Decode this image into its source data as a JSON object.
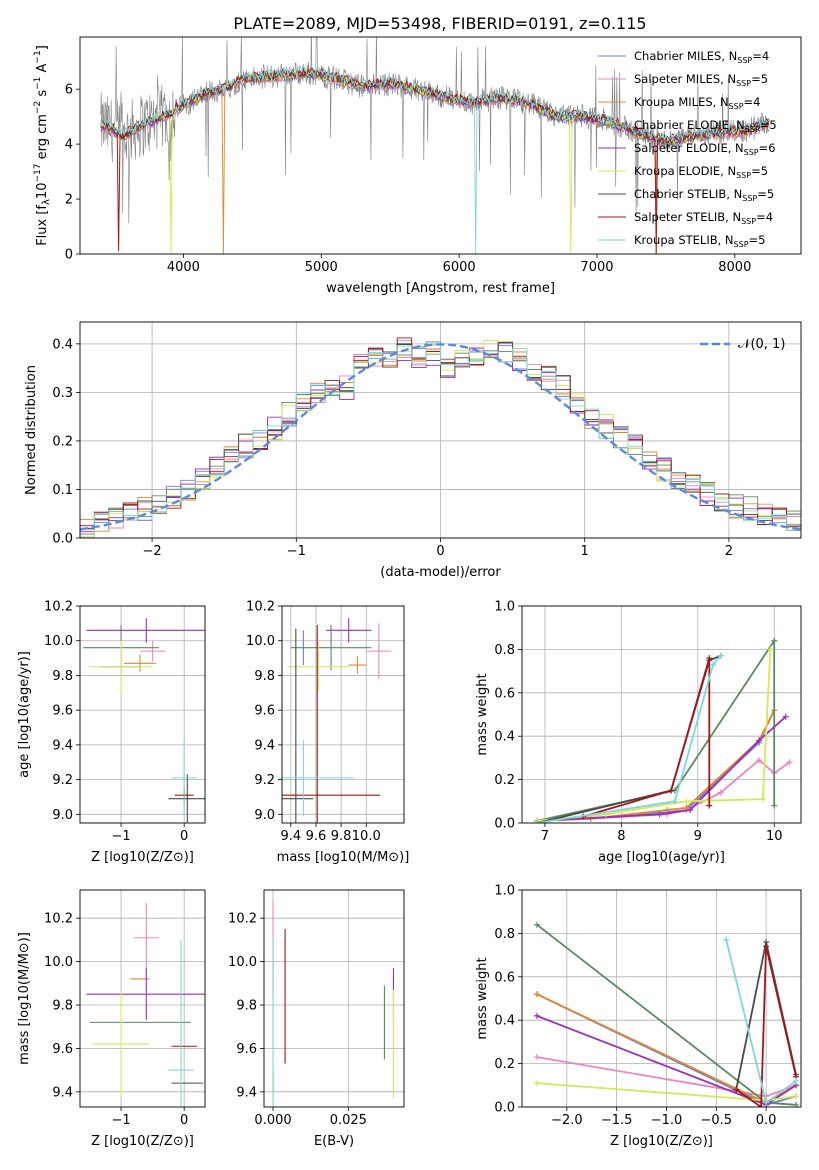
{
  "figure": {
    "title": "PLATE=2089, MJD=53498, FIBERID=0191, z=0.115"
  },
  "legend_series": [
    {
      "name": "Chabrier MILES, N",
      "sub": "SSP",
      "tail": "=4",
      "color": "#6f7fdb"
    },
    {
      "name": "Salpeter MILES, N",
      "sub": "SSP",
      "tail": "=5",
      "color": "#e887c0"
    },
    {
      "name": "Kroupa MILES, N",
      "sub": "SSP",
      "tail": "=4",
      "color": "#e08a2a"
    },
    {
      "name": "Chabrier ELODIE, N",
      "sub": "SSP",
      "tail": "=5",
      "color": "#5a8a60"
    },
    {
      "name": "Salpeter ELODIE, N",
      "sub": "SSP",
      "tail": "=6",
      "color": "#9b2fb8"
    },
    {
      "name": "Kroupa ELODIE, N",
      "sub": "SSP",
      "tail": "=5",
      "color": "#d3e85a"
    },
    {
      "name": "Chabrier STELIB, N",
      "sub": "SSP",
      "tail": "=5",
      "color": "#4a4a4a"
    },
    {
      "name": "Salpeter STELIB, N",
      "sub": "SSP",
      "tail": "=4",
      "color": "#a01818"
    },
    {
      "name": "Kroupa STELIB, N",
      "sub": "SSP",
      "tail": "=5",
      "color": "#7fd6dc"
    }
  ],
  "chart_data": [
    {
      "id": "spectrum",
      "type": "line",
      "xlabel": "wavelength [Angstrom, rest frame]",
      "ylabel": "Flux [f",
      "ylabel_parts": [
        "Flux [f",
        "λ",
        "10",
        "−17",
        " erg cm",
        "−2",
        " s",
        "−1",
        " A",
        "−1",
        "]"
      ],
      "xlim": [
        3250,
        8480
      ],
      "ylim": [
        0,
        7.9
      ],
      "xticks": [
        4000,
        5000,
        6000,
        7000,
        8000
      ],
      "yticks": [
        0,
        2,
        4,
        6
      ],
      "data_color": "#808080",
      "continuum": {
        "x": [
          3400,
          3450,
          3500,
          3550,
          3600,
          3700,
          3800,
          3900,
          3950,
          4000,
          4100,
          4200,
          4300,
          4400,
          4500,
          4700,
          4900,
          5100,
          5300,
          5500,
          5700,
          5900,
          6100,
          6300,
          6500,
          6700,
          6900,
          7100,
          7300,
          7500,
          7700,
          7900,
          8100,
          8250
        ],
        "y": [
          4.7,
          4.6,
          4.5,
          4.3,
          4.4,
          4.7,
          4.9,
          5.1,
          5.3,
          5.4,
          5.7,
          5.9,
          6.0,
          6.3,
          6.4,
          6.5,
          6.6,
          6.4,
          6.1,
          6.2,
          6.0,
          5.7,
          5.5,
          5.7,
          5.5,
          5.0,
          5.0,
          4.8,
          4.4,
          4.1,
          4.3,
          4.4,
          4.5,
          4.8
        ]
      },
      "dips": [
        {
          "x": 3530,
          "y": 0.1,
          "series": [
            2,
            7
          ]
        },
        {
          "x": 3910,
          "y": 0.0,
          "series": [
            5
          ]
        },
        {
          "x": 4290,
          "y": 0.0,
          "series": [
            2
          ]
        },
        {
          "x": 6120,
          "y": 0.0,
          "series": [
            8
          ]
        },
        {
          "x": 6810,
          "y": 0.0,
          "series": [
            5
          ]
        },
        {
          "x": 7430,
          "y": 0.0,
          "series": [
            2,
            7
          ]
        }
      ]
    },
    {
      "id": "residuals",
      "type": "step",
      "xlabel": "(data-model)/error",
      "ylabel": "Normed distribution",
      "xlim": [
        -2.5,
        2.5
      ],
      "ylim": [
        0,
        0.445
      ],
      "xticks": [
        -2,
        -1,
        0,
        1,
        2
      ],
      "yticks": [
        0.0,
        0.1,
        0.2,
        0.3,
        0.4
      ],
      "bin_width": 0.1,
      "reference_curve": {
        "label": "𝒩(0, 1)",
        "mean": 0,
        "sigma": 1,
        "color": "#5b8bdc"
      },
      "base_series": [
        0.025,
        0.03,
        0.04,
        0.05,
        0.06,
        0.07,
        0.085,
        0.1,
        0.12,
        0.145,
        0.165,
        0.19,
        0.205,
        0.225,
        0.255,
        0.28,
        0.3,
        0.3,
        0.31,
        0.37,
        0.37,
        0.36,
        0.39,
        0.37,
        0.38,
        0.355,
        0.37,
        0.38,
        0.39,
        0.385,
        0.37,
        0.35,
        0.33,
        0.31,
        0.275,
        0.25,
        0.23,
        0.21,
        0.19,
        0.165,
        0.14,
        0.125,
        0.11,
        0.09,
        0.08,
        0.065,
        0.06,
        0.045,
        0.04,
        0.035
      ]
    },
    {
      "id": "age_vs_Z",
      "type": "errorbar",
      "xlabel": "Z [log10(Z/Z⊙)]",
      "ylabel": "age  [log10(age/yr)]",
      "xlim": [
        -1.65,
        0.33
      ],
      "ylim": [
        8.95,
        10.2
      ],
      "xticks": [
        -1,
        0
      ],
      "yticks": [
        9.0,
        9.2,
        9.4,
        9.6,
        9.8,
        10.0,
        10.2
      ],
      "points": [
        {
          "s": 0,
          "x": -1.0,
          "y": 9.85,
          "xe": 0.3,
          "ye": 0.1
        },
        {
          "s": 1,
          "x": -0.5,
          "y": 9.94,
          "xe": 0.2,
          "ye": 0.06
        },
        {
          "s": 2,
          "x": -0.7,
          "y": 9.87,
          "xe": 0.25,
          "ye": 0.05
        },
        {
          "s": 3,
          "x": -1.0,
          "y": 9.96,
          "xe": 0.6,
          "ye": 0.13
        },
        {
          "s": 4,
          "x": -0.6,
          "y": 10.06,
          "xe": 0.95,
          "ye": 0.07
        },
        {
          "s": 5,
          "x": -1.0,
          "y": 9.85,
          "xe": 0.5,
          "ye": 0.15
        },
        {
          "s": 6,
          "x": 0.05,
          "y": 9.09,
          "xe": 0.3,
          "ye": 0.14
        },
        {
          "s": 7,
          "x": 0.0,
          "y": 9.11,
          "xe": 0.15,
          "ye": 0.04
        },
        {
          "s": 8,
          "x": 0.0,
          "y": 9.21,
          "xe": 0.2,
          "ye": 0.22
        }
      ]
    },
    {
      "id": "age_vs_mass",
      "type": "errorbar",
      "xlabel": "mass [log10(M/M⊙)]",
      "ylabel": "",
      "xlim": [
        9.33,
        10.3
      ],
      "ylim": [
        8.95,
        10.2
      ],
      "xticks": [
        9.4,
        9.6,
        9.8,
        10.0
      ],
      "yticks": [
        9.0,
        9.2,
        9.4,
        9.6,
        9.8,
        10.0,
        10.2
      ],
      "points": [
        {
          "s": 0,
          "x": 9.5,
          "y": 9.96,
          "xe": 0.0,
          "ye": 0.1
        },
        {
          "s": 1,
          "x": 10.1,
          "y": 9.94,
          "xe": 0.1,
          "ye": 0.16
        },
        {
          "s": 2,
          "x": 9.93,
          "y": 9.86,
          "xe": 0.07,
          "ye": 0.05
        },
        {
          "s": 3,
          "x": 9.72,
          "y": 9.96,
          "xe": 0.32,
          "ye": 0.13
        },
        {
          "s": 4,
          "x": 9.86,
          "y": 10.06,
          "xe": 0.18,
          "ye": 0.07
        },
        {
          "s": 5,
          "x": 9.62,
          "y": 9.85,
          "xe": 0.25,
          "ye": 0.14
        },
        {
          "s": 6,
          "x": 9.44,
          "y": 9.09,
          "xe": 0.14,
          "ye": 0.98
        },
        {
          "s": 7,
          "x": 9.61,
          "y": 9.11,
          "xe": 0.5,
          "ye": 0.98
        },
        {
          "s": 8,
          "x": 9.5,
          "y": 9.21,
          "xe": 0.4,
          "ye": 0.22
        }
      ]
    },
    {
      "id": "massweight_vs_age",
      "type": "line",
      "xlabel": "age  [log10(age/yr)]",
      "ylabel": "mass weight",
      "xlim": [
        6.7,
        10.35
      ],
      "ylim": [
        0,
        1.0
      ],
      "xticks": [
        7,
        8,
        9,
        10
      ],
      "yticks": [
        0.0,
        0.2,
        0.4,
        0.6,
        0.8,
        1.0
      ],
      "series": [
        {
          "s": 0,
          "x": [
            6.9,
            7.6,
            8.6,
            8.85,
            9.8,
            10.0
          ],
          "y": [
            0.01,
            0.02,
            0.05,
            0.06,
            0.37,
            0.52
          ]
        },
        {
          "s": 1,
          "x": [
            6.9,
            7.6,
            8.6,
            8.85,
            9.3,
            9.8,
            10.0,
            10.2
          ],
          "y": [
            0.01,
            0.02,
            0.04,
            0.06,
            0.14,
            0.29,
            0.23,
            0.28
          ]
        },
        {
          "s": 2,
          "x": [
            6.9,
            7.6,
            8.6,
            8.85,
            9.8,
            10.0
          ],
          "y": [
            0.01,
            0.02,
            0.06,
            0.07,
            0.38,
            0.52
          ]
        },
        {
          "s": 3,
          "x": [
            6.9,
            8.7,
            10.0,
            10.0
          ],
          "y": [
            0.01,
            0.15,
            0.84,
            0.08
          ]
        },
        {
          "s": 4,
          "x": [
            6.9,
            8.5,
            8.9,
            9.8,
            10.15
          ],
          "y": [
            0.01,
            0.04,
            0.06,
            0.38,
            0.49
          ]
        },
        {
          "s": 5,
          "x": [
            6.9,
            7.8,
            8.85,
            9.85,
            9.95
          ],
          "y": [
            0.01,
            0.04,
            0.1,
            0.11,
            0.8
          ]
        },
        {
          "s": 6,
          "x": [
            6.9,
            8.65,
            9.15,
            9.3
          ],
          "y": [
            0.0,
            0.15,
            0.75,
            0.77
          ]
        },
        {
          "s": 7,
          "x": [
            7.5,
            8.65,
            9.15,
            9.15
          ],
          "y": [
            0.03,
            0.15,
            0.76,
            0.08
          ]
        },
        {
          "s": 8,
          "x": [
            6.9,
            8.7,
            9.2,
            9.3
          ],
          "y": [
            0.0,
            0.1,
            0.73,
            0.77
          ]
        }
      ]
    },
    {
      "id": "mass_vs_Z",
      "type": "errorbar",
      "xlabel": "Z [log10(Z/Z⊙)]",
      "ylabel": "mass [log10(M/M⊙)]",
      "xlim": [
        -1.65,
        0.33
      ],
      "ylim": [
        9.33,
        10.33
      ],
      "xticks": [
        -1,
        0
      ],
      "yticks": [
        9.4,
        9.6,
        9.8,
        10.0,
        10.2
      ],
      "points": [
        {
          "s": 0,
          "x": -1.0,
          "y": 9.5,
          "xe": 0.0,
          "ye": 0.0
        },
        {
          "s": 1,
          "x": -0.6,
          "y": 10.11,
          "xe": 0.2,
          "ye": 0.16
        },
        {
          "s": 2,
          "x": -0.7,
          "y": 9.92,
          "xe": 0.15,
          "ye": 0.0
        },
        {
          "s": 3,
          "x": -0.7,
          "y": 9.72,
          "xe": 0.8,
          "ye": 0.0
        },
        {
          "s": 4,
          "x": -0.6,
          "y": 9.85,
          "xe": 0.95,
          "ye": 0.12
        },
        {
          "s": 5,
          "x": -1.0,
          "y": 9.62,
          "xe": 0.45,
          "ye": 0.24
        },
        {
          "s": 6,
          "x": 0.05,
          "y": 9.44,
          "xe": 0.25,
          "ye": 0.0
        },
        {
          "s": 7,
          "x": 0.0,
          "y": 9.61,
          "xe": 0.2,
          "ye": 0.0
        },
        {
          "s": 8,
          "x": -0.05,
          "y": 9.5,
          "xe": 0.2,
          "ye": 0.6
        }
      ]
    },
    {
      "id": "mass_vs_EBV",
      "type": "errorbar",
      "xlabel": "E(B-V)",
      "ylabel": "",
      "xlim": [
        -0.003,
        0.0435
      ],
      "ylim": [
        9.33,
        10.33
      ],
      "xticks": [
        0.0,
        0.025
      ],
      "xtick_labels": [
        "0.000",
        "0.025"
      ],
      "yticks": [
        9.4,
        9.6,
        9.8,
        10.0,
        10.2
      ],
      "points": [
        {
          "s": 0,
          "x": 0.0,
          "y": 9.44,
          "xe": 0,
          "ye": 0.06
        },
        {
          "s": 1,
          "x": 0.0,
          "y": 10.11,
          "xe": 0,
          "ye": 0.17
        },
        {
          "s": 2,
          "x": 0.0,
          "y": 9.92,
          "xe": 0,
          "ye": 0.08
        },
        {
          "s": 3,
          "x": 0.037,
          "y": 9.72,
          "xe": 0,
          "ye": 0.17
        },
        {
          "s": 4,
          "x": 0.04,
          "y": 9.85,
          "xe": 0,
          "ye": 0.12
        },
        {
          "s": 5,
          "x": 0.04,
          "y": 9.62,
          "xe": 0,
          "ye": 0.25
        },
        {
          "s": 6,
          "x": 0.0,
          "y": 9.44,
          "xe": 0,
          "ye": 0.04
        },
        {
          "s": 7,
          "x": 0.004,
          "y": 9.84,
          "xe": 0,
          "ye": 0.31
        },
        {
          "s": 8,
          "x": 0.0,
          "y": 9.61,
          "xe": 0,
          "ye": 0.5
        }
      ]
    },
    {
      "id": "massweight_vs_Z",
      "type": "line",
      "xlabel": "Z [log10(Z/Z⊙)]",
      "ylabel": "mass weight",
      "xlim": [
        -2.45,
        0.35
      ],
      "ylim": [
        0,
        1.0
      ],
      "xticks": [
        -2.0,
        -1.5,
        -1.0,
        -0.5,
        0.0
      ],
      "yticks": [
        0.0,
        0.2,
        0.4,
        0.6,
        0.8,
        1.0
      ],
      "series": [
        {
          "s": 0,
          "x": [
            -2.3,
            0.0,
            0.3
          ],
          "y": [
            0.52,
            0.01,
            0.05
          ]
        },
        {
          "s": 1,
          "x": [
            -2.3,
            0.0,
            0.3
          ],
          "y": [
            0.23,
            0.05,
            0.1
          ]
        },
        {
          "s": 2,
          "x": [
            -2.3,
            0.0,
            0.3
          ],
          "y": [
            0.52,
            0.02,
            0.1
          ]
        },
        {
          "s": 3,
          "x": [
            -2.3,
            0.0,
            0.3
          ],
          "y": [
            0.84,
            0.02,
            0.01
          ]
        },
        {
          "s": 4,
          "x": [
            -2.3,
            0.0,
            0.3
          ],
          "y": [
            0.42,
            0.01,
            0.1
          ]
        },
        {
          "s": 5,
          "x": [
            -2.3,
            0.0,
            0.3
          ],
          "y": [
            0.11,
            0.03,
            0.05
          ]
        },
        {
          "s": 6,
          "x": [
            -0.3,
            0.0,
            0.3
          ],
          "y": [
            0.08,
            0.76,
            0.15
          ]
        },
        {
          "s": 7,
          "x": [
            -0.3,
            -0.05,
            0.0,
            0.3
          ],
          "y": [
            0.08,
            0.0,
            0.74,
            0.14
          ]
        },
        {
          "s": 8,
          "x": [
            -0.4,
            0.0,
            0.3
          ],
          "y": [
            0.77,
            0.02,
            0.12
          ]
        }
      ]
    }
  ]
}
